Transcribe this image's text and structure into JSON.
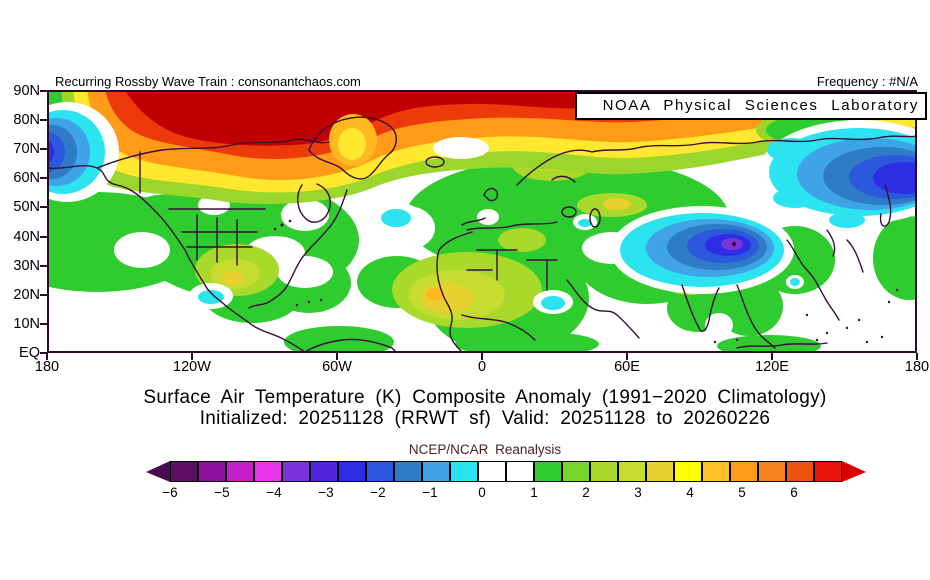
{
  "header": {
    "left_label": "Recurring Rossby Wave Train : consonantchaos.com",
    "frequency_label": "Frequency : #N/A",
    "org_box_label": "NOAA Physical Sciences Laboratory"
  },
  "map_axes": {
    "lat_ticks": [
      "90N",
      "80N",
      "70N",
      "60N",
      "50N",
      "40N",
      "30N",
      "20N",
      "10N",
      "EQ"
    ],
    "lon_ticks": [
      "180",
      "120W",
      "60W",
      "0",
      "60E",
      "120E",
      "180"
    ]
  },
  "titles": {
    "line1": "Surface Air Temperature (K) Composite Anomaly (1991−2020 Climatology)",
    "line2": "Initialized: 20251128 (RRWT sf) Valid: 20251128 to 20260226"
  },
  "colorbar": {
    "label": "NCEP/NCAR Reanalysis",
    "tick_labels": [
      "−6",
      "−5",
      "−4",
      "−3",
      "−2",
      "−1",
      "0",
      "1",
      "2",
      "3",
      "4",
      "5",
      "6"
    ],
    "box_colors": [
      "#5c0e63",
      "#8f13a0",
      "#c41fc9",
      "#ea35ea",
      "#7c35dd",
      "#5226dd",
      "#2d2de3",
      "#2b58dc",
      "#2e7cc8",
      "#3fa3e8",
      "#2be4f0",
      "#ffffff",
      "#ffffff",
      "#2ecc2e",
      "#77d62b",
      "#a8d92b",
      "#c6dc2e",
      "#e8d02e",
      "#ffff00",
      "#ffc125",
      "#ff9b17",
      "#f5821f",
      "#ed5310",
      "#e8130a"
    ],
    "left_arrow_color": "#4a0a50",
    "right_arrow_color": "#dd0000"
  },
  "chart_data": {
    "type": "heatmap",
    "variable": "Surface Air Temperature Composite Anomaly",
    "units": "K",
    "climatology": "1991−2020",
    "initialized": "20251128 (RRWT sf)",
    "valid": "20251128 to 20260226",
    "source_label": "NCEP/NCAR Reanalysis",
    "lat_range": [
      "EQ",
      "90N"
    ],
    "lon_range": [
      "180",
      "180"
    ],
    "colorbar_ticks": [
      -6,
      -5,
      -4,
      -3,
      -2,
      -1,
      0,
      1,
      2,
      3,
      4,
      5,
      6
    ],
    "shading_interval": 0.5,
    "notable_features": [
      {
        "region": "Arctic Ocean / northern Canada / Greenland",
        "anomaly_k": "+4 to +6"
      },
      {
        "region": "Bering Strait area, left edge ~60–78N",
        "anomaly_k": "-2 to -4"
      },
      {
        "region": "Eastern Siberia ~130E–180, 55–75N",
        "anomaly_k": "-2 to -4"
      },
      {
        "region": "Tibetan Plateau / western China ~75E–110E, 25–45N",
        "anomaly_k": "-3 to -5"
      },
      {
        "region": "Central United States",
        "anomaly_k": "+1 to +3"
      },
      {
        "region": "Sahara / West Africa",
        "anomaly_k": "+2 to +3"
      },
      {
        "region": "Scandinavia / western Russia",
        "anomaly_k": "+1 to +3"
      },
      {
        "region": "Mid-latitude oceans (N Pacific, N Atlantic)",
        "anomaly_k": "near 0"
      },
      {
        "region": "Small cool spots: W Mexico, NW Atlantic, Sudan, Caspian",
        "anomaly_k": "-1 to -2"
      }
    ]
  }
}
